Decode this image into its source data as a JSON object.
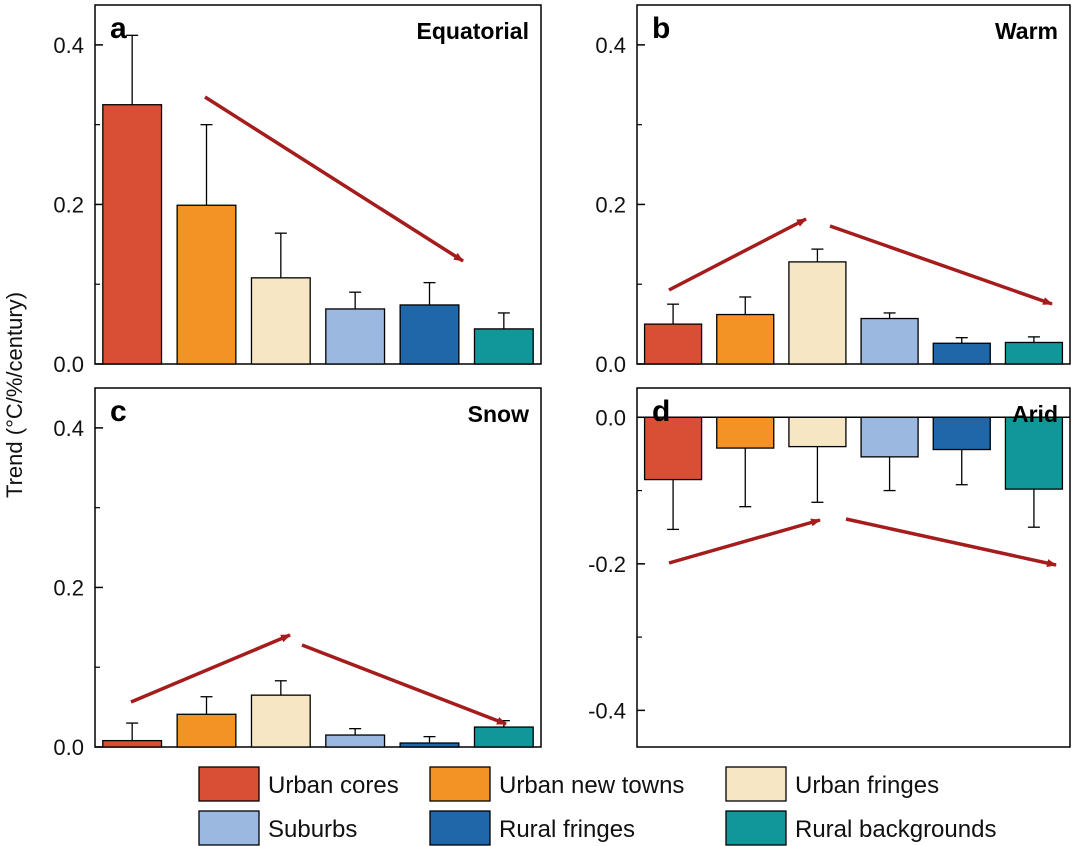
{
  "ylabel": "Trend (°C/%/century)",
  "categories": [
    "Urban cores",
    "Urban new towns",
    "Urban fringes",
    "Suburbs",
    "Rural fringes",
    "Rural backgrounds"
  ],
  "colors": [
    "#d94f35",
    "#f39326",
    "#f7e6c4",
    "#9bb9e0",
    "#1f67a8",
    "#11979a"
  ],
  "arrow_color": "#a51c1c",
  "chart_data": [
    {
      "type": "bar",
      "panel": "a",
      "title": "Equatorial",
      "categories": [
        "Urban cores",
        "Urban new towns",
        "Urban fringes",
        "Suburbs",
        "Rural fringes",
        "Rural backgrounds"
      ],
      "values": [
        0.325,
        0.199,
        0.108,
        0.069,
        0.074,
        0.044
      ],
      "errors": [
        0.087,
        0.101,
        0.056,
        0.021,
        0.028,
        0.02
      ],
      "ylim": [
        0,
        0.45
      ],
      "yticks": [
        0.0,
        0.2,
        0.4
      ],
      "ytick_labels": [
        "0.0",
        "0.2",
        "0.4"
      ],
      "trend": "decreasing"
    },
    {
      "type": "bar",
      "panel": "b",
      "title": "Warm",
      "categories": [
        "Urban cores",
        "Urban new towns",
        "Urban fringes",
        "Suburbs",
        "Rural fringes",
        "Rural backgrounds"
      ],
      "values": [
        0.05,
        0.062,
        0.128,
        0.057,
        0.026,
        0.027
      ],
      "errors": [
        0.025,
        0.022,
        0.016,
        0.007,
        0.007,
        0.007
      ],
      "ylim": [
        0,
        0.45
      ],
      "yticks": [
        0.0,
        0.2,
        0.4
      ],
      "ytick_labels": [
        "0.0",
        "0.2",
        "0.4"
      ],
      "trend": "increasing then decreasing"
    },
    {
      "type": "bar",
      "panel": "c",
      "title": "Snow",
      "categories": [
        "Urban cores",
        "Urban new towns",
        "Urban fringes",
        "Suburbs",
        "Rural fringes",
        "Rural backgrounds"
      ],
      "values": [
        0.008,
        0.041,
        0.065,
        0.015,
        0.005,
        0.025
      ],
      "errors": [
        0.022,
        0.022,
        0.018,
        0.008,
        0.008,
        0.008
      ],
      "ylim": [
        0,
        0.45
      ],
      "yticks": [
        0.0,
        0.2,
        0.4
      ],
      "ytick_labels": [
        "0.0",
        "0.2",
        "0.4"
      ],
      "trend": "increasing then decreasing"
    },
    {
      "type": "bar",
      "panel": "d",
      "title": "Arid",
      "categories": [
        "Urban cores",
        "Urban new towns",
        "Urban fringes",
        "Suburbs",
        "Rural fringes",
        "Rural backgrounds"
      ],
      "values": [
        -0.085,
        -0.042,
        -0.04,
        -0.054,
        -0.044,
        -0.098
      ],
      "errors": [
        0.068,
        0.08,
        0.076,
        0.046,
        0.048,
        0.052
      ],
      "ylim": [
        -0.45,
        0.04
      ],
      "yticks": [
        0.0,
        -0.2,
        -0.4
      ],
      "ytick_labels": [
        "0.0",
        "-0.2",
        "-0.4"
      ],
      "trend": "increasing then decreasing"
    }
  ]
}
